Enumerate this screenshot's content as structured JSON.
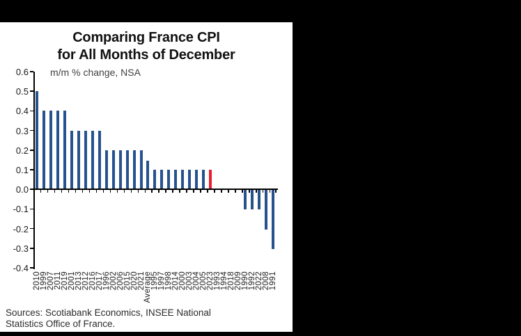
{
  "frame": {
    "bg": "#000000",
    "panel_bg": "#ffffff"
  },
  "chart": {
    "title_line1": "Comparing France CPI",
    "title_line2": "for All Months of December",
    "subtitle": "m/m % change, NSA",
    "source_line1": "Sources: Scotiabank Economics, INSEE National",
    "source_line2": "Statistics Office of France."
  },
  "chart_data": {
    "type": "bar",
    "title": "Comparing France CPI for All Months of December",
    "subtitle": "m/m % change, NSA",
    "ylim": [
      -0.4,
      0.6
    ],
    "ytick_step": 0.1,
    "ytick_labels": [
      "0.6",
      "0.5",
      "0.4",
      "0.3",
      "0.2",
      "0.1",
      "0.0",
      "-0.1",
      "-0.2",
      "-0.3",
      "-0.4"
    ],
    "grid": false,
    "legend": "none",
    "sort": "values sorted descending left to right",
    "bar_color": "#26528E",
    "highlight_category": "2023",
    "highlight_color": "#E81C2D",
    "categories": [
      "2010",
      "1999",
      "2007",
      "2011",
      "2019",
      "2001",
      "2013",
      "2012",
      "2016",
      "2017",
      "1996",
      "2002",
      "2006",
      "2015",
      "2020",
      "2021",
      "Average",
      "1995",
      "1997",
      "1998",
      "2014",
      "2000",
      "2003",
      "2004",
      "2005",
      "2023",
      "1993",
      "1994",
      "2018",
      "2009",
      "1990",
      "1992",
      "2022",
      "2008",
      "1991"
    ],
    "values": [
      0.5,
      0.4,
      0.4,
      0.4,
      0.4,
      0.3,
      0.3,
      0.3,
      0.3,
      0.3,
      0.2,
      0.2,
      0.2,
      0.2,
      0.2,
      0.2,
      0.145,
      0.1,
      0.1,
      0.1,
      0.1,
      0.1,
      0.1,
      0.1,
      0.1,
      0.1,
      0.0,
      0.0,
      0.0,
      0.0,
      -0.1,
      -0.1,
      -0.1,
      -0.2,
      -0.3
    ],
    "source": "Sources: Scotiabank Economics, INSEE National Statistics Office of France."
  }
}
